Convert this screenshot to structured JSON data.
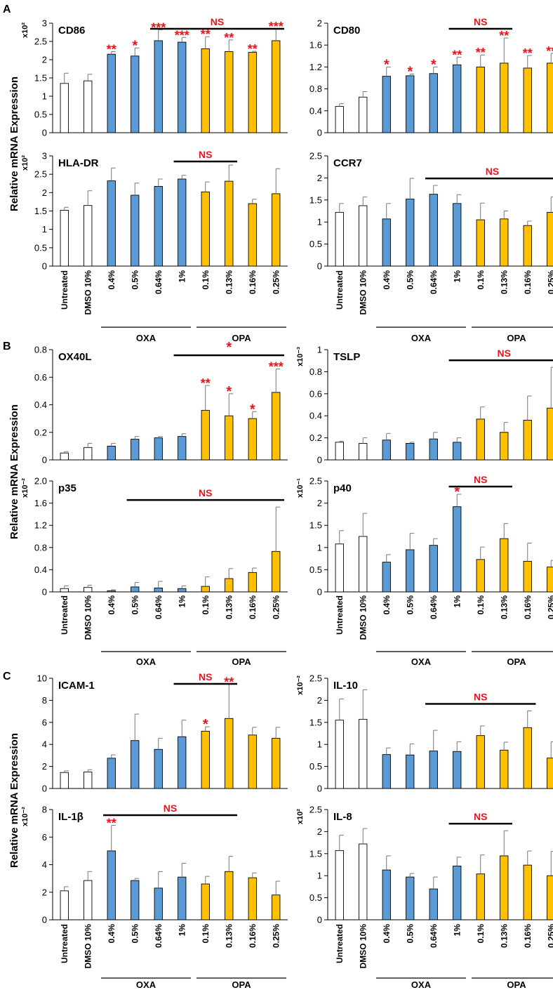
{
  "colors": {
    "untreated": "#ffffff",
    "oxa": "#5b9bd5",
    "opa": "#ffc000",
    "stroke": "#000000",
    "significance": "#e8141b"
  },
  "panels": [
    {
      "letter": "A",
      "ylabel": "Relative mRNA Expression"
    },
    {
      "letter": "B",
      "ylabel": "Relative mRNA Expression"
    },
    {
      "letter": "C",
      "ylabel": "Relative mRNA Expression"
    }
  ],
  "categories": [
    "Untreated",
    "DMSO 10%",
    "0.4%",
    "0.5%",
    "0.64%",
    "1%",
    "0.1%",
    "0.13%",
    "0.16%",
    "0.25%"
  ],
  "groups": {
    "oxa": "OXA",
    "opa": "OPA"
  },
  "chart_data": [
    {
      "type": "bar",
      "title": "CD86",
      "unit": "x10²",
      "ylim": [
        0,
        3
      ],
      "ticks": [
        "0",
        "0.5",
        "1",
        "1.5",
        "2",
        "2.5",
        "3"
      ],
      "values": [
        1.35,
        1.42,
        2.15,
        2.1,
        2.52,
        2.48,
        2.3,
        2.22,
        2.2,
        2.52
      ],
      "errors": [
        0.28,
        0.18,
        0.07,
        0.22,
        0.3,
        0.13,
        0.33,
        0.32,
        0.03,
        0.33
      ],
      "sig": [
        "",
        "",
        "**",
        "*",
        "***",
        "***",
        "**",
        "**",
        "**",
        "***"
      ],
      "bracket": {
        "label": "NS",
        "from": 4,
        "to": 9
      }
    },
    {
      "type": "bar",
      "title": "CD80",
      "unit": "",
      "ylim": [
        0,
        2
      ],
      "ticks": [
        "0",
        "0.4",
        "0.8",
        "1.2",
        "1.6",
        "2"
      ],
      "values": [
        0.48,
        0.65,
        1.03,
        1.04,
        1.08,
        1.24,
        1.2,
        1.27,
        1.18,
        1.27
      ],
      "errors": [
        0.05,
        0.1,
        0.17,
        0.03,
        0.12,
        0.14,
        0.22,
        0.46,
        0.23,
        0.18
      ],
      "sig": [
        "",
        "",
        "*",
        "*",
        "*",
        "**",
        "**",
        "**",
        "**",
        "**"
      ],
      "bracket": {
        "label": "NS",
        "from": 5,
        "to": 7
      }
    },
    {
      "type": "bar",
      "title": "HLA-DR",
      "unit": "x10²",
      "ylim": [
        0,
        3
      ],
      "ticks": [
        "0",
        "0.5",
        "1",
        "1.5",
        "2",
        "2.5",
        "3"
      ],
      "values": [
        1.52,
        1.65,
        2.32,
        1.93,
        2.17,
        2.37,
        2.02,
        2.31,
        1.7,
        1.97
      ],
      "errors": [
        0.08,
        0.4,
        0.35,
        0.33,
        0.2,
        0.1,
        0.27,
        0.44,
        0.12,
        0.68
      ],
      "sig": [
        "",
        "",
        "",
        "",
        "",
        "",
        "",
        "",
        "",
        ""
      ],
      "bracket": {
        "label": "NS",
        "from": 5,
        "to": 7
      }
    },
    {
      "type": "bar",
      "title": "CCR7",
      "unit": "",
      "ylim": [
        0,
        2.5
      ],
      "ticks": [
        "0",
        "0.5",
        "1",
        "1.5",
        "2",
        "2.5"
      ],
      "values": [
        1.22,
        1.37,
        1.07,
        1.52,
        1.63,
        1.42,
        1.05,
        1.07,
        0.92,
        1.22
      ],
      "errors": [
        0.2,
        0.2,
        0.35,
        0.47,
        0.2,
        0.2,
        0.38,
        0.18,
        0.1,
        0.35
      ],
      "sig": [
        "",
        "",
        "",
        "",
        "",
        "",
        "",
        "",
        "",
        ""
      ],
      "bracket": {
        "label": "NS",
        "from": 4,
        "to": 9
      }
    },
    {
      "type": "bar",
      "title": "OX40L",
      "unit": "",
      "ylim": [
        0,
        0.8
      ],
      "ticks": [
        "0",
        "0.2",
        "0.4",
        "0.6",
        "0.8"
      ],
      "values": [
        0.05,
        0.09,
        0.1,
        0.15,
        0.16,
        0.17,
        0.36,
        0.32,
        0.3,
        0.49
      ],
      "errors": [
        0.01,
        0.03,
        0.02,
        0.02,
        0.01,
        0.02,
        0.18,
        0.16,
        0.05,
        0.17
      ],
      "sig": [
        "",
        "",
        "",
        "",
        "",
        "",
        "**",
        "*",
        "*",
        "***"
      ],
      "bracket": {
        "label": "*",
        "from": 5,
        "to": 9
      }
    },
    {
      "type": "bar",
      "title": "TSLP",
      "unit": "x10⁻³",
      "ylim": [
        0,
        1
      ],
      "ticks": [
        "0",
        "0.2",
        "0.4",
        "0.6",
        "0.8",
        "1"
      ],
      "values": [
        0.16,
        0.15,
        0.18,
        0.15,
        0.19,
        0.16,
        0.37,
        0.25,
        0.36,
        0.47
      ],
      "errors": [
        0.01,
        0.05,
        0.06,
        0.01,
        0.06,
        0.04,
        0.11,
        0.09,
        0.22,
        0.37
      ],
      "sig": [
        "",
        "",
        "",
        "",
        "",
        "",
        "",
        "",
        "",
        ""
      ],
      "bracket": {
        "label": "NS",
        "from": 5,
        "to": 9
      }
    },
    {
      "type": "bar",
      "title": "p35",
      "unit": "x10⁻²",
      "ylim": [
        0,
        2
      ],
      "ticks": [
        "0",
        "0.4",
        "0.8",
        "1.2",
        "1.6",
        "2.0"
      ],
      "values": [
        0.06,
        0.08,
        0.02,
        0.09,
        0.07,
        0.06,
        0.1,
        0.24,
        0.35,
        0.73
      ],
      "errors": [
        0.05,
        0.04,
        0.02,
        0.08,
        0.12,
        0.05,
        0.17,
        0.18,
        0.08,
        0.8
      ],
      "sig": [
        "",
        "",
        "",
        "",
        "",
        "",
        "",
        "",
        "",
        ""
      ],
      "bracket": {
        "label": "NS",
        "from": 3,
        "to": 9
      }
    },
    {
      "type": "bar",
      "title": "p40",
      "unit": "x10⁻¹",
      "ylim": [
        0,
        2.5
      ],
      "ticks": [
        "0",
        "0.5",
        "1",
        "1.5",
        "2",
        "2.5"
      ],
      "values": [
        1.08,
        1.25,
        0.67,
        0.95,
        1.05,
        1.92,
        0.73,
        1.2,
        0.69,
        0.56
      ],
      "errors": [
        0.3,
        0.52,
        0.17,
        0.37,
        0.15,
        0.28,
        0.28,
        0.34,
        0.41,
        0.15
      ],
      "sig": [
        "",
        "",
        "",
        "",
        "",
        "*",
        "",
        "",
        "",
        ""
      ],
      "bracket": {
        "label": "NS",
        "from": 5,
        "to": 7
      }
    },
    {
      "type": "bar",
      "title": "ICAM-1",
      "unit": "",
      "ylim": [
        0,
        10
      ],
      "ticks": [
        "0",
        "2",
        "4",
        "6",
        "8",
        "10"
      ],
      "values": [
        1.45,
        1.5,
        2.75,
        4.35,
        3.55,
        4.7,
        5.2,
        6.35,
        4.85,
        4.55
      ],
      "errors": [
        0.15,
        0.2,
        0.3,
        2.4,
        1.0,
        1.5,
        0.4,
        3.1,
        0.7,
        1.0
      ],
      "sig": [
        "",
        "",
        "",
        "",
        "",
        "",
        "*",
        "**",
        "",
        ""
      ],
      "bracket": {
        "label": "NS",
        "from": 5,
        "to": 7
      }
    },
    {
      "type": "bar",
      "title": "IL-10",
      "unit": "x10⁻²",
      "ylim": [
        0,
        2.5
      ],
      "ticks": [
        "0",
        "0.5",
        "1",
        "1.5",
        "2",
        "2.5"
      ],
      "values": [
        1.55,
        1.57,
        0.77,
        0.76,
        0.85,
        0.84,
        1.2,
        0.87,
        1.38,
        0.69
      ],
      "errors": [
        0.48,
        0.67,
        0.15,
        0.25,
        0.47,
        0.22,
        0.22,
        0.18,
        0.38,
        0.37
      ],
      "sig": [
        "",
        "",
        "",
        "",
        "",
        "",
        "",
        "",
        "",
        ""
      ],
      "bracket": {
        "label": "NS",
        "from": 4,
        "to": 8
      }
    },
    {
      "type": "bar",
      "title": "IL-1β",
      "unit": "x10⁻²",
      "ylim": [
        0,
        8
      ],
      "ticks": [
        "0",
        "2",
        "4",
        "6",
        "8"
      ],
      "values": [
        2.1,
        2.85,
        5.0,
        2.85,
        2.3,
        3.1,
        2.6,
        3.5,
        3.05,
        1.8
      ],
      "errors": [
        0.3,
        0.65,
        1.85,
        0.15,
        1.2,
        1.0,
        0.55,
        1.1,
        0.35,
        1.0
      ],
      "sig": [
        "",
        "",
        "**",
        "",
        "",
        "",
        "",
        "",
        "",
        ""
      ],
      "bracket": {
        "label": "NS",
        "from": 2,
        "to": 7
      }
    },
    {
      "type": "bar",
      "title": "IL-8",
      "unit": "x10²",
      "ylim": [
        0,
        2.5
      ],
      "ticks": [
        "0",
        "0.5",
        "1",
        "1.5",
        "2",
        "2.5"
      ],
      "values": [
        1.57,
        1.72,
        1.13,
        0.97,
        0.7,
        1.22,
        1.04,
        1.45,
        1.24,
        1.0
      ],
      "errors": [
        0.35,
        0.35,
        0.32,
        0.08,
        0.27,
        0.2,
        0.43,
        0.57,
        0.32,
        0.55
      ],
      "sig": [
        "",
        "",
        "",
        "",
        "",
        "",
        "",
        "",
        "",
        ""
      ],
      "bracket": {
        "label": "NS",
        "from": 5,
        "to": 7
      }
    }
  ]
}
